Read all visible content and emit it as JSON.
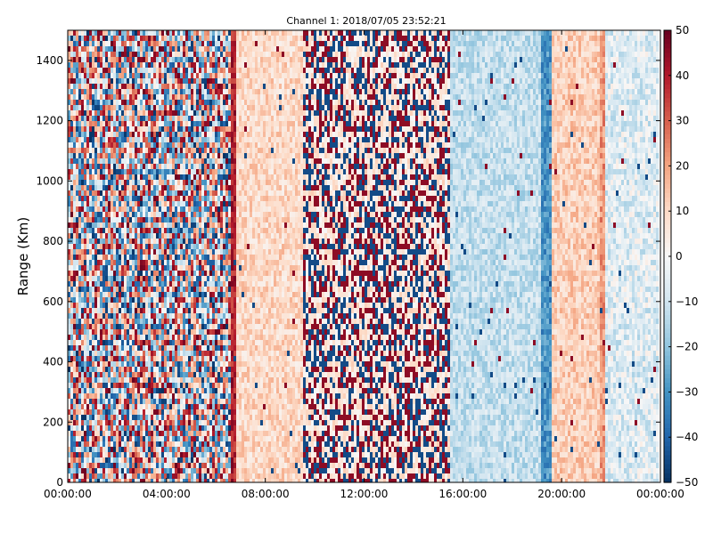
{
  "chart_data": {
    "type": "heatmap",
    "title": "Channel 1: 2018/07/05 23:52:21",
    "xlabel": "",
    "ylabel": "Range (Km)",
    "x_ticks": [
      "00:00:00",
      "04:00:00",
      "08:00:00",
      "12:00:00",
      "16:00:00",
      "20:00:00",
      "00:00:00"
    ],
    "x_tick_hours": [
      0,
      4,
      8,
      12,
      16,
      20,
      24
    ],
    "xlim_hours": [
      0,
      24
    ],
    "y_ticks": [
      "0",
      "200",
      "400",
      "600",
      "800",
      "1000",
      "1200",
      "1400"
    ],
    "y_tick_values": [
      0,
      200,
      400,
      600,
      800,
      1000,
      1200,
      1400
    ],
    "ylim": [
      0,
      1500
    ],
    "colorbar": {
      "colormap": "RdBu_r",
      "vmin": -50,
      "vmax": 50,
      "ticks": [
        "50",
        "40",
        "30",
        "20",
        "10",
        "0",
        "−10",
        "−20",
        "−30",
        "−40",
        "−50"
      ],
      "tick_values": [
        50,
        40,
        30,
        20,
        10,
        0,
        -10,
        -20,
        -30,
        -40,
        -50
      ]
    },
    "regions": [
      {
        "hours": [
          0.0,
          6.6
        ],
        "pattern": "noise",
        "mean": 0,
        "spread": 50
      },
      {
        "hours": [
          6.6,
          6.8
        ],
        "pattern": "band",
        "mean": 40,
        "spread": 8
      },
      {
        "hours": [
          6.8,
          9.5
        ],
        "pattern": "band",
        "mean": 10,
        "spread": 8
      },
      {
        "hours": [
          9.5,
          15.5
        ],
        "pattern": "sparse-noise",
        "mean": 6,
        "spread": 50
      },
      {
        "hours": [
          15.5,
          19.2
        ],
        "pattern": "band",
        "mean": -12,
        "spread": 8
      },
      {
        "hours": [
          19.2,
          19.6
        ],
        "pattern": "band",
        "mean": -30,
        "spread": 8
      },
      {
        "hours": [
          19.6,
          21.5
        ],
        "pattern": "band",
        "mean": 12,
        "spread": 8
      },
      {
        "hours": [
          21.5,
          21.8
        ],
        "pattern": "band",
        "mean": 22,
        "spread": 8
      },
      {
        "hours": [
          21.8,
          24.0
        ],
        "pattern": "band",
        "mean": -6,
        "spread": 10
      }
    ]
  }
}
